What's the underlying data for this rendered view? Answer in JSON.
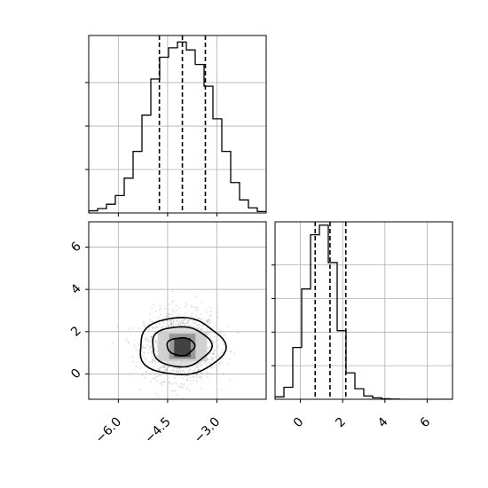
{
  "chart_data": {
    "type": "corner",
    "colors": {
      "line": "#000000",
      "grid": "#b0b0b0",
      "scatter": "#9e9e9e",
      "background": "#ffffff"
    },
    "grid": true,
    "params": [
      {
        "range": [
          -6.9,
          -1.5
        ],
        "ticks": [
          -6.0,
          -4.5,
          -3.0
        ],
        "tick_labels": [
          "−6.0",
          "−4.5",
          "−3.0"
        ],
        "hist_edges_start": -6.9,
        "hist_bin_width": 0.27,
        "hist_values": [
          0.3,
          0.6,
          1.2,
          2.4,
          4.8,
          8.5,
          13.5,
          18.5,
          21.5,
          22.8,
          23.6,
          22.5,
          20.5,
          17.5,
          13.0,
          8.5,
          4.2,
          1.8,
          0.7,
          0.2
        ],
        "hist_ylim": [
          0,
          24.5
        ],
        "quantiles": [
          -4.75,
          -4.05,
          -3.35
        ]
      },
      {
        "range": [
          -1.2,
          7.2
        ],
        "ticks": [
          0,
          2,
          4,
          6
        ],
        "tick_labels": [
          "0",
          "2",
          "4",
          "6"
        ],
        "hist_edges_start": -1.2,
        "hist_bin_width": 0.42,
        "hist_values": [
          0.5,
          2.5,
          10.8,
          23.0,
          34.3,
          36.3,
          28.5,
          14.3,
          5.5,
          2.2,
          0.7,
          0.3,
          0.1,
          0.05,
          0,
          0,
          0,
          0,
          0,
          0
        ],
        "hist_ylim": [
          0,
          37
        ],
        "quantiles": [
          0.7,
          1.4,
          2.15
        ]
      }
    ],
    "joint": {
      "center": [
        -4.1,
        1.3
      ],
      "spread": [
        0.55,
        0.8
      ],
      "contour_levels": [
        {
          "rx": 0.42,
          "ry": 0.42
        },
        {
          "rx": 0.9,
          "ry": 0.95
        },
        {
          "rx": 1.3,
          "ry": 1.35
        }
      ],
      "density_cells": [
        {
          "x": -4.55,
          "y": 0.4,
          "w": 1.0,
          "h": 1.8,
          "shade": "#dcdcdc"
        },
        {
          "x": -4.8,
          "y": 0.6,
          "w": 1.5,
          "h": 1.4,
          "shade": "#cccccc"
        },
        {
          "x": -4.45,
          "y": 0.7,
          "w": 0.8,
          "h": 1.2,
          "shade": "#8e8e8e"
        },
        {
          "x": -4.3,
          "y": 0.8,
          "w": 0.5,
          "h": 0.9,
          "shade": "#333333"
        }
      ]
    }
  }
}
